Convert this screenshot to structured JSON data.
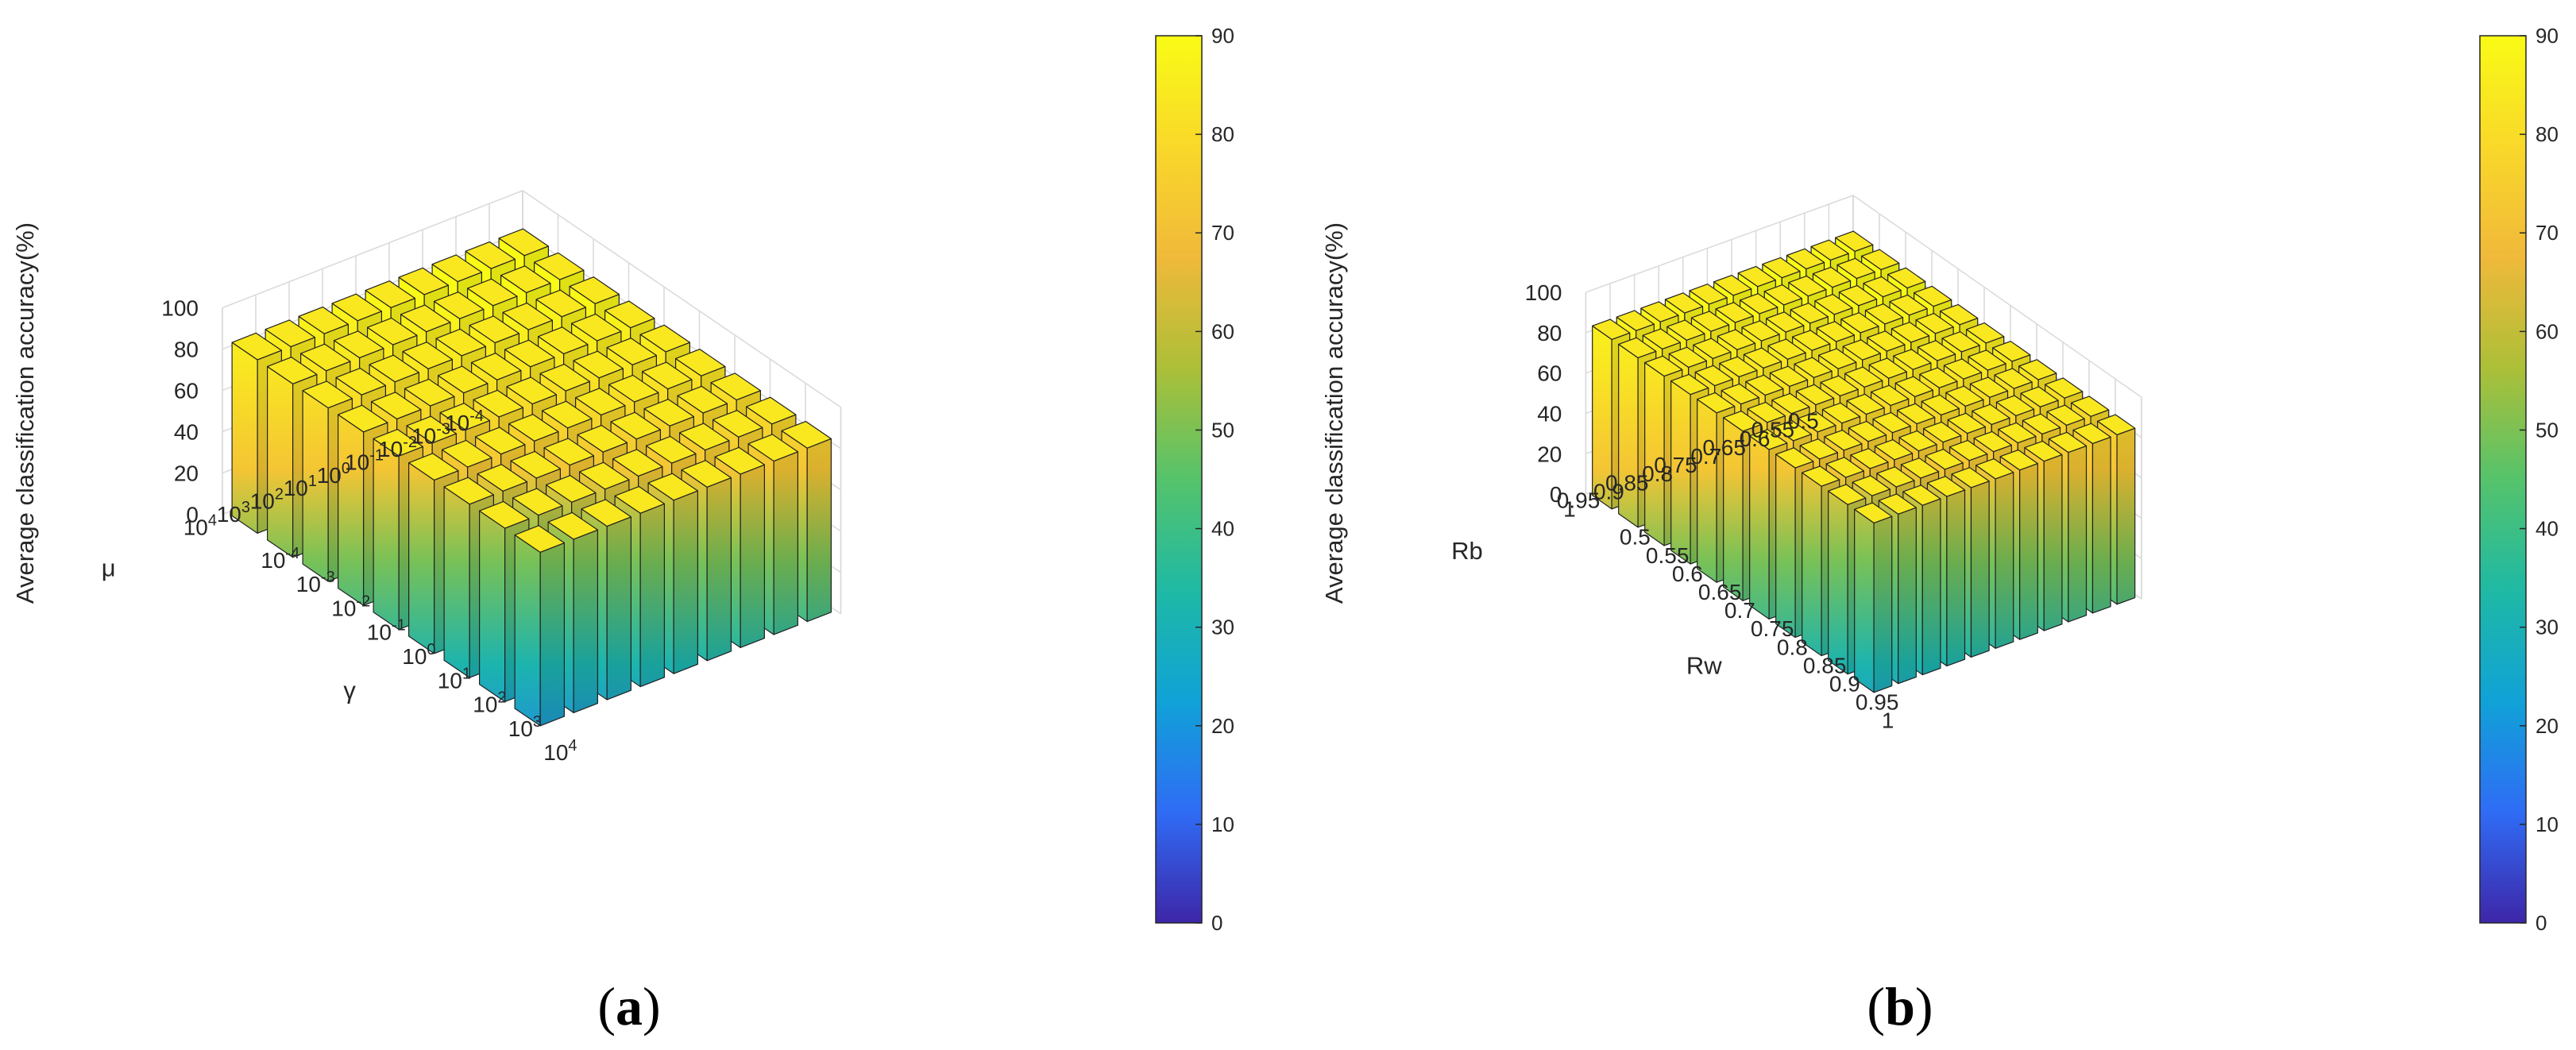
{
  "figure": {
    "colormap": [
      "#3e26a8",
      "#2f6cf5",
      "#10a2d7",
      "#1fb9a4",
      "#55c36b",
      "#acbf38",
      "#f0b93a",
      "#f9d82a",
      "#f9fb15"
    ],
    "bar_edge_color": "#222222"
  },
  "chart_data": [
    {
      "type": "bar3d",
      "caption_mark": "a",
      "zlabel": "Average classification accuracy(%)",
      "zlim": [
        0,
        100
      ],
      "zticks": [
        "0",
        "20",
        "40",
        "60",
        "80",
        "100"
      ],
      "x_axis": {
        "label": "γ",
        "categories": [
          {
            "base": "10",
            "exp": "-4"
          },
          {
            "base": "10",
            "exp": "-3"
          },
          {
            "base": "10",
            "exp": "-2"
          },
          {
            "base": "10",
            "exp": "-1"
          },
          {
            "base": "10",
            "exp": "0"
          },
          {
            "base": "10",
            "exp": "1"
          },
          {
            "base": "10",
            "exp": "2"
          },
          {
            "base": "10",
            "exp": "3"
          },
          {
            "base": "10",
            "exp": "4"
          }
        ]
      },
      "y_axis": {
        "label": "μ",
        "categories": [
          {
            "base": "10",
            "exp": "-4"
          },
          {
            "base": "10",
            "exp": "-3"
          },
          {
            "base": "10",
            "exp": "-2"
          },
          {
            "base": "10",
            "exp": "-1"
          },
          {
            "base": "10",
            "exp": "0"
          },
          {
            "base": "10",
            "exp": "1"
          },
          {
            "base": "10",
            "exp": "2"
          },
          {
            "base": "10",
            "exp": "3"
          },
          {
            "base": "10",
            "exp": "4"
          }
        ]
      },
      "values": [
        [
          84,
          84,
          84,
          84,
          84,
          84,
          84,
          84,
          84
        ],
        [
          84,
          84,
          84,
          84,
          84,
          84,
          84,
          84,
          84
        ],
        [
          84,
          84,
          84,
          84,
          84,
          84,
          84,
          84,
          84
        ],
        [
          84,
          84,
          84,
          84,
          84,
          84,
          84,
          84,
          84
        ],
        [
          84,
          84,
          84,
          84,
          84,
          84,
          84,
          84,
          84
        ],
        [
          84,
          84,
          84,
          84,
          84,
          84,
          84,
          84,
          84
        ],
        [
          84,
          84,
          84,
          84,
          84,
          84,
          84,
          84,
          84
        ],
        [
          84,
          84,
          84,
          84,
          84,
          84,
          84,
          84,
          84
        ],
        [
          84,
          84,
          84,
          84,
          84,
          84,
          84,
          84,
          84
        ]
      ],
      "colorbar": {
        "range": [
          0,
          90
        ],
        "ticks": [
          "0",
          "10",
          "20",
          "30",
          "40",
          "50",
          "60",
          "70",
          "80",
          "90"
        ]
      }
    },
    {
      "type": "bar3d",
      "caption_mark": "b",
      "zlabel": "Average classification accuracy(%)",
      "zlim": [
        0,
        100
      ],
      "zticks": [
        "0",
        "20",
        "40",
        "60",
        "80",
        "100"
      ],
      "x_axis": {
        "label": "Rw",
        "categories": [
          "0.5",
          "0.55",
          "0.6",
          "0.65",
          "0.7",
          "0.75",
          "0.8",
          "0.85",
          "0.9",
          "0.95",
          "1"
        ]
      },
      "y_axis": {
        "label": "Rb",
        "categories": [
          "0.5",
          "0.55",
          "0.6",
          "0.65",
          "0.7",
          "0.75",
          "0.8",
          "0.85",
          "0.9",
          "0.95",
          "1"
        ]
      },
      "values": [
        [
          84,
          84,
          84,
          84,
          84,
          84,
          84,
          84,
          84,
          84,
          84
        ],
        [
          84,
          84,
          84,
          84,
          84,
          84,
          84,
          84,
          84,
          84,
          84
        ],
        [
          84,
          84,
          84,
          84,
          84,
          84,
          84,
          84,
          84,
          84,
          84
        ],
        [
          84,
          84,
          84,
          84,
          84,
          84,
          84,
          84,
          84,
          84,
          84
        ],
        [
          84,
          84,
          84,
          84,
          84,
          84,
          84,
          84,
          84,
          84,
          84
        ],
        [
          84,
          84,
          84,
          84,
          84,
          84,
          84,
          84,
          84,
          84,
          84
        ],
        [
          84,
          84,
          84,
          84,
          84,
          84,
          84,
          84,
          84,
          84,
          84
        ],
        [
          84,
          84,
          84,
          84,
          84,
          84,
          84,
          84,
          84,
          84,
          84
        ],
        [
          84,
          84,
          84,
          84,
          84,
          84,
          84,
          84,
          84,
          84,
          84
        ],
        [
          84,
          84,
          84,
          84,
          84,
          84,
          84,
          84,
          84,
          84,
          84
        ],
        [
          84,
          84,
          84,
          84,
          84,
          84,
          84,
          84,
          84,
          84,
          84
        ]
      ],
      "colorbar": {
        "range": [
          0,
          90
        ],
        "ticks": [
          "0",
          "10",
          "20",
          "30",
          "40",
          "50",
          "60",
          "70",
          "80",
          "90"
        ]
      }
    }
  ]
}
